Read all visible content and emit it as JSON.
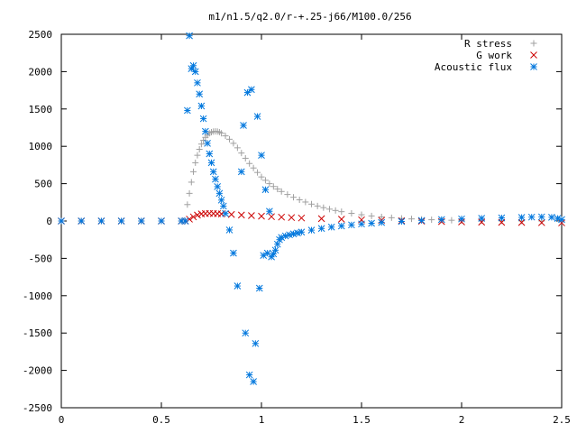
{
  "chart_data": {
    "type": "scatter",
    "title": "m1/n1.5/q2.0/r-+.25-j66/M100.0/256",
    "xlabel": "",
    "ylabel": "",
    "xlim": [
      0,
      2.5
    ],
    "ylim": [
      -2500,
      2500
    ],
    "grid": false,
    "legend_position": "top-right",
    "x_ticks": [
      {
        "value": 0,
        "label": "0"
      },
      {
        "value": 0.5,
        "label": "0.5"
      },
      {
        "value": 1,
        "label": "1"
      },
      {
        "value": 1.5,
        "label": "1.5"
      },
      {
        "value": 2,
        "label": "2"
      },
      {
        "value": 2.5,
        "label": "2.5"
      }
    ],
    "y_ticks": [
      {
        "value": 2500,
        "label": "2500"
      },
      {
        "value": 2000,
        "label": "2000"
      },
      {
        "value": 1500,
        "label": "1500"
      },
      {
        "value": 1000,
        "label": "1000"
      },
      {
        "value": 500,
        "label": "500"
      },
      {
        "value": 0,
        "label": "0"
      },
      {
        "value": -500,
        "label": "-500"
      },
      {
        "value": -1000,
        "label": "-1000"
      },
      {
        "value": -1500,
        "label": "-1500"
      },
      {
        "value": -2000,
        "label": "-2000"
      },
      {
        "value": -2500,
        "label": "-2500"
      }
    ],
    "series": [
      {
        "name": "R stress",
        "marker": "plus",
        "color": "#a0a0a0",
        "points": [
          [
            0.0,
            0
          ],
          [
            0.1,
            0
          ],
          [
            0.2,
            0
          ],
          [
            0.3,
            0
          ],
          [
            0.4,
            0
          ],
          [
            0.5,
            0
          ],
          [
            0.6,
            0
          ],
          [
            0.62,
            0
          ],
          [
            0.63,
            220
          ],
          [
            0.64,
            370
          ],
          [
            0.65,
            520
          ],
          [
            0.66,
            660
          ],
          [
            0.67,
            780
          ],
          [
            0.68,
            880
          ],
          [
            0.69,
            960
          ],
          [
            0.7,
            1030
          ],
          [
            0.71,
            1080
          ],
          [
            0.72,
            1120
          ],
          [
            0.73,
            1150
          ],
          [
            0.74,
            1175
          ],
          [
            0.75,
            1190
          ],
          [
            0.76,
            1198
          ],
          [
            0.77,
            1200
          ],
          [
            0.78,
            1198
          ],
          [
            0.79,
            1190
          ],
          [
            0.8,
            1175
          ],
          [
            0.82,
            1140
          ],
          [
            0.84,
            1095
          ],
          [
            0.86,
            1040
          ],
          [
            0.88,
            980
          ],
          [
            0.9,
            910
          ],
          [
            0.92,
            840
          ],
          [
            0.94,
            770
          ],
          [
            0.96,
            710
          ],
          [
            0.98,
            650
          ],
          [
            1.0,
            590
          ],
          [
            1.02,
            545
          ],
          [
            1.04,
            500
          ],
          [
            1.06,
            462
          ],
          [
            1.08,
            428
          ],
          [
            1.1,
            395
          ],
          [
            1.13,
            355
          ],
          [
            1.16,
            318
          ],
          [
            1.19,
            284
          ],
          [
            1.22,
            254
          ],
          [
            1.25,
            226
          ],
          [
            1.28,
            201
          ],
          [
            1.31,
            179
          ],
          [
            1.34,
            159
          ],
          [
            1.37,
            141
          ],
          [
            1.4,
            125
          ],
          [
            1.45,
            103
          ],
          [
            1.5,
            84
          ],
          [
            1.55,
            68
          ],
          [
            1.6,
            55
          ],
          [
            1.65,
            44
          ],
          [
            1.7,
            35
          ],
          [
            1.75,
            28
          ],
          [
            1.8,
            22
          ],
          [
            1.85,
            17
          ],
          [
            1.9,
            13
          ],
          [
            1.95,
            10
          ],
          [
            2.0,
            7
          ],
          [
            2.1,
            4
          ],
          [
            2.2,
            2
          ],
          [
            2.3,
            1
          ],
          [
            2.4,
            0
          ],
          [
            2.5,
            0
          ]
        ]
      },
      {
        "name": "G work",
        "marker": "cross",
        "color": "#cc0000",
        "points": [
          [
            0.0,
            0
          ],
          [
            0.1,
            0
          ],
          [
            0.2,
            0
          ],
          [
            0.3,
            0
          ],
          [
            0.4,
            0
          ],
          [
            0.5,
            0
          ],
          [
            0.6,
            0
          ],
          [
            0.62,
            0
          ],
          [
            0.64,
            25
          ],
          [
            0.66,
            55
          ],
          [
            0.68,
            80
          ],
          [
            0.7,
            95
          ],
          [
            0.72,
            100
          ],
          [
            0.74,
            102
          ],
          [
            0.76,
            100
          ],
          [
            0.78,
            98
          ],
          [
            0.8,
            95
          ],
          [
            0.85,
            88
          ],
          [
            0.9,
            80
          ],
          [
            0.95,
            72
          ],
          [
            1.0,
            65
          ],
          [
            1.05,
            58
          ],
          [
            1.1,
            52
          ],
          [
            1.15,
            46
          ],
          [
            1.2,
            40
          ],
          [
            1.3,
            32
          ],
          [
            1.4,
            24
          ],
          [
            1.5,
            16
          ],
          [
            1.6,
            10
          ],
          [
            1.7,
            4
          ],
          [
            1.8,
            -2
          ],
          [
            1.9,
            -8
          ],
          [
            2.0,
            -12
          ],
          [
            2.1,
            -15
          ],
          [
            2.2,
            -18
          ],
          [
            2.3,
            -20
          ],
          [
            2.4,
            -22
          ],
          [
            2.5,
            -25
          ]
        ]
      },
      {
        "name": "Acoustic flux",
        "marker": "star",
        "color": "#0077dd",
        "points": [
          [
            0.0,
            0
          ],
          [
            0.1,
            0
          ],
          [
            0.2,
            0
          ],
          [
            0.3,
            0
          ],
          [
            0.4,
            0
          ],
          [
            0.5,
            0
          ],
          [
            0.6,
            0
          ],
          [
            0.62,
            0
          ],
          [
            0.63,
            1480
          ],
          [
            0.64,
            2480
          ],
          [
            0.65,
            2040
          ],
          [
            0.66,
            2080
          ],
          [
            0.67,
            2000
          ],
          [
            0.68,
            1850
          ],
          [
            0.69,
            1700
          ],
          [
            0.7,
            1540
          ],
          [
            0.71,
            1370
          ],
          [
            0.72,
            1200
          ],
          [
            0.73,
            1040
          ],
          [
            0.74,
            900
          ],
          [
            0.75,
            780
          ],
          [
            0.76,
            660
          ],
          [
            0.77,
            560
          ],
          [
            0.78,
            460
          ],
          [
            0.79,
            370
          ],
          [
            0.8,
            280
          ],
          [
            0.81,
            200
          ],
          [
            0.82,
            100
          ],
          [
            0.84,
            -120
          ],
          [
            0.86,
            -430
          ],
          [
            0.88,
            -870
          ],
          [
            0.9,
            660
          ],
          [
            0.91,
            1280
          ],
          [
            0.92,
            -1500
          ],
          [
            0.93,
            1720
          ],
          [
            0.94,
            -2060
          ],
          [
            0.95,
            1760
          ],
          [
            0.96,
            -2150
          ],
          [
            0.97,
            -1640
          ],
          [
            0.98,
            1400
          ],
          [
            0.99,
            -900
          ],
          [
            1.0,
            880
          ],
          [
            1.01,
            -460
          ],
          [
            1.02,
            420
          ],
          [
            1.03,
            -430
          ],
          [
            1.04,
            130
          ],
          [
            1.05,
            -480
          ],
          [
            1.06,
            -440
          ],
          [
            1.07,
            -390
          ],
          [
            1.08,
            -310
          ],
          [
            1.09,
            -250
          ],
          [
            1.1,
            -220
          ],
          [
            1.12,
            -200
          ],
          [
            1.14,
            -185
          ],
          [
            1.16,
            -172
          ],
          [
            1.18,
            -160
          ],
          [
            1.2,
            -148
          ],
          [
            1.25,
            -122
          ],
          [
            1.3,
            -100
          ],
          [
            1.35,
            -82
          ],
          [
            1.4,
            -66
          ],
          [
            1.45,
            -52
          ],
          [
            1.5,
            -40
          ],
          [
            1.55,
            -30
          ],
          [
            1.6,
            -20
          ],
          [
            1.7,
            -6
          ],
          [
            1.8,
            8
          ],
          [
            1.9,
            20
          ],
          [
            2.0,
            28
          ],
          [
            2.1,
            36
          ],
          [
            2.2,
            42
          ],
          [
            2.3,
            48
          ],
          [
            2.35,
            52
          ],
          [
            2.4,
            55
          ],
          [
            2.45,
            50
          ],
          [
            2.48,
            35
          ],
          [
            2.5,
            20
          ]
        ]
      }
    ]
  }
}
